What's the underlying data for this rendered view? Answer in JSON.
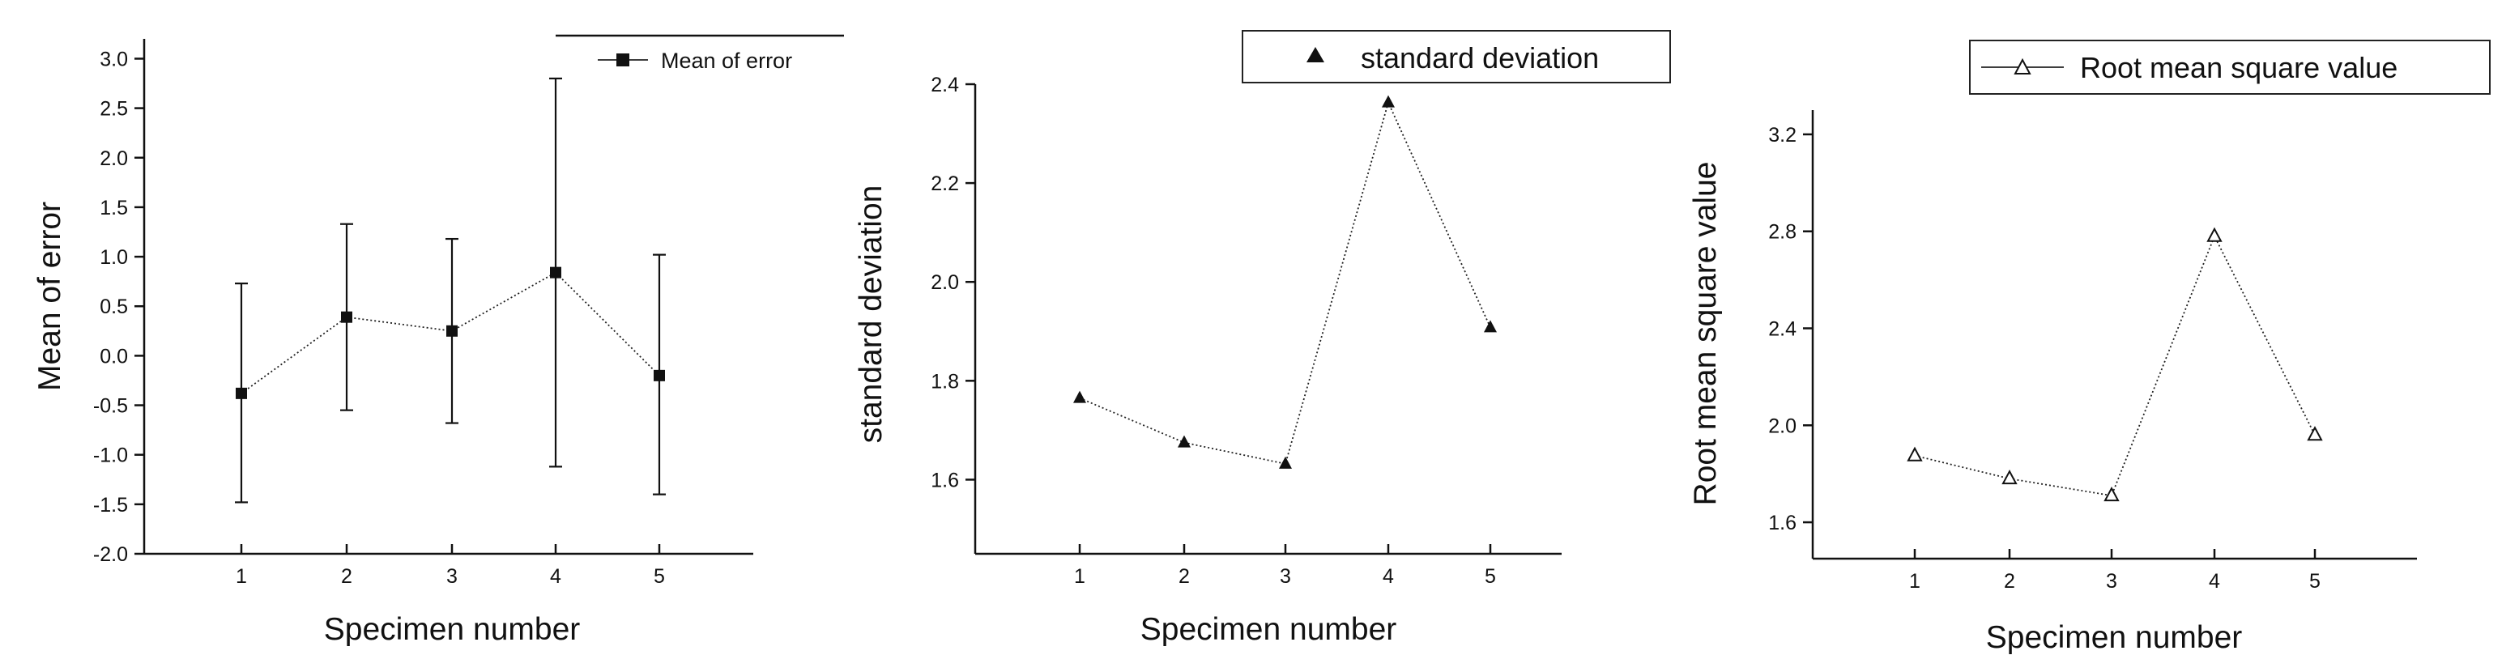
{
  "chart_data": [
    {
      "type": "line",
      "title": "",
      "xlabel": "Specimen number",
      "ylabel": "Mean of error",
      "x": [
        1,
        2,
        3,
        4,
        5
      ],
      "xlim": [
        0,
        6.5
      ],
      "ylim": [
        -2.0,
        3.2
      ],
      "yticks": [
        "-2.0",
        "-1.5",
        "-1.0",
        "-0.5",
        "0.0",
        "0.5",
        "1.0",
        "1.5",
        "2.0",
        "2.5",
        "3.0"
      ],
      "xticks": [
        "1",
        "2",
        "3",
        "4",
        "5"
      ],
      "legend_position": "top-right",
      "grid": false,
      "series": [
        {
          "name": "Mean of error",
          "marker": "filled-square",
          "values": [
            -0.38,
            0.39,
            0.25,
            0.84,
            -0.2
          ],
          "error_low": [
            -1.48,
            -0.55,
            -0.68,
            -1.12,
            -1.4
          ],
          "error_high": [
            0.73,
            1.33,
            1.18,
            2.8,
            1.02
          ]
        }
      ]
    },
    {
      "type": "line",
      "title": "",
      "xlabel": "Specimen number",
      "ylabel": "standard deviation",
      "x": [
        1,
        2,
        3,
        4,
        5
      ],
      "xlim": [
        0,
        6.5
      ],
      "ylim": [
        1.45,
        2.4
      ],
      "yticks": [
        "1.6",
        "1.8",
        "2.0",
        "2.2",
        "2.4"
      ],
      "xticks": [
        "1",
        "2",
        "3",
        "4",
        "5"
      ],
      "legend_position": "top-right",
      "grid": false,
      "series": [
        {
          "name": "standard deviation",
          "marker": "filled-triangle",
          "values": [
            1.765,
            1.675,
            1.632,
            2.363,
            1.908
          ]
        }
      ]
    },
    {
      "type": "line",
      "title": "",
      "xlabel": "Specimen number",
      "ylabel": "Root mean square value",
      "x": [
        1,
        2,
        3,
        4,
        5
      ],
      "xlim": [
        0,
        6.5
      ],
      "ylim": [
        1.45,
        3.3
      ],
      "yticks": [
        "1.6",
        "2.0",
        "2.4",
        "2.8",
        "3.2"
      ],
      "xticks": [
        "1",
        "2",
        "3",
        "4",
        "5"
      ],
      "legend_position": "top-right",
      "grid": false,
      "series": [
        {
          "name": "Root mean square value",
          "marker": "open-triangle",
          "values": [
            1.875,
            1.78,
            1.71,
            2.78,
            1.96
          ]
        }
      ]
    }
  ]
}
